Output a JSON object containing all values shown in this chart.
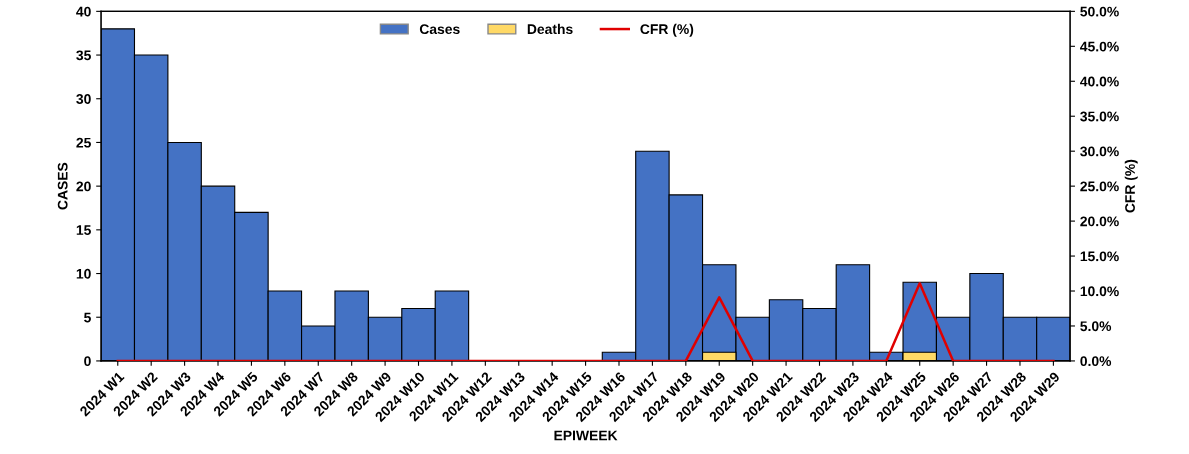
{
  "chart_data": {
    "type": "bar",
    "xlabel": "EPIWEEK",
    "ylabel": "CASES",
    "y2label": "CFR (%)",
    "categories": [
      "2024 W1",
      "2024 W2",
      "2024 W3",
      "2024 W4",
      "2024 W5",
      "2024 W6",
      "2024 W7",
      "2024 W8",
      "2024 W9",
      "2024 W10",
      "2024 W11",
      "2024 W12",
      "2024 W13",
      "2024 W14",
      "2024 W15",
      "2024 W16",
      "2024 W17",
      "2024 W18",
      "2024 W19",
      "2024 W20",
      "2024 W21",
      "2024 W22",
      "2024 W23",
      "2024 W24",
      "2024 W25",
      "2024 W26",
      "2024 W27",
      "2024 W28",
      "2024 W29"
    ],
    "series": [
      {
        "name": "Cases",
        "color": "#4472c4",
        "values": [
          38,
          35,
          25,
          20,
          17,
          8,
          4,
          8,
          5,
          6,
          8,
          0,
          0,
          0,
          0,
          1,
          24,
          19,
          11,
          5,
          7,
          6,
          11,
          1,
          9,
          5,
          10,
          5,
          5
        ]
      },
      {
        "name": "Deaths",
        "color": "#ffd966",
        "values": [
          0,
          0,
          0,
          0,
          0,
          0,
          0,
          0,
          0,
          0,
          0,
          0,
          0,
          0,
          0,
          0,
          0,
          0,
          1,
          0,
          0,
          0,
          0,
          0,
          1,
          0,
          0,
          0,
          0
        ]
      },
      {
        "name": "CFR (%)",
        "type": "line",
        "axis": "y2",
        "color": "#e00000",
        "values": [
          0,
          0,
          0,
          0,
          0,
          0,
          0,
          0,
          0,
          0,
          0,
          0,
          0,
          0,
          0,
          0,
          0,
          0,
          9.1,
          0,
          0,
          0,
          0,
          0,
          11.1,
          0,
          0,
          0,
          0
        ]
      }
    ],
    "ylim": [
      0,
      40
    ],
    "yticks": [
      0,
      5,
      10,
      15,
      20,
      25,
      30,
      35,
      40
    ],
    "y2lim": [
      0,
      50
    ],
    "y2ticks": [
      {
        "value": 0,
        "label": "0.0%"
      },
      {
        "value": 5,
        "label": "5.0%"
      },
      {
        "value": 10,
        "label": "10.0%"
      },
      {
        "value": 15,
        "label": "15.0%"
      },
      {
        "value": 20,
        "label": "20.0%"
      },
      {
        "value": 25,
        "label": "25.0%"
      },
      {
        "value": 30,
        "label": "30.0%"
      },
      {
        "value": 35,
        "label": "35.0%"
      },
      {
        "value": 40,
        "label": "40.0%"
      },
      {
        "value": 45,
        "label": "45.0%"
      },
      {
        "value": 50,
        "label": "50.0%"
      }
    ],
    "grid": false,
    "legend": "top"
  }
}
